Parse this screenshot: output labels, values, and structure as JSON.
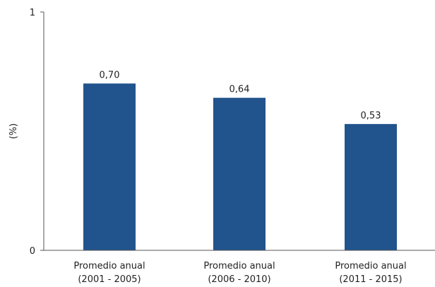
{
  "chart_data": {
    "type": "bar",
    "title": "",
    "xlabel": "",
    "ylabel": "(%)",
    "ylim": [
      0,
      1
    ],
    "yticks": [
      "0",
      "1"
    ],
    "grid": false,
    "legend": "none",
    "categories": [
      [
        "Promedio anual",
        "(2001 - 2005)"
      ],
      [
        "Promedio anual",
        "(2006 - 2010)"
      ],
      [
        "Promedio anual",
        "(2011 - 2015)"
      ]
    ],
    "values": [
      0.7,
      0.64,
      0.53
    ],
    "value_labels": [
      "0,70",
      "0,64",
      "0,53"
    ],
    "bar_color": "#21548d"
  }
}
